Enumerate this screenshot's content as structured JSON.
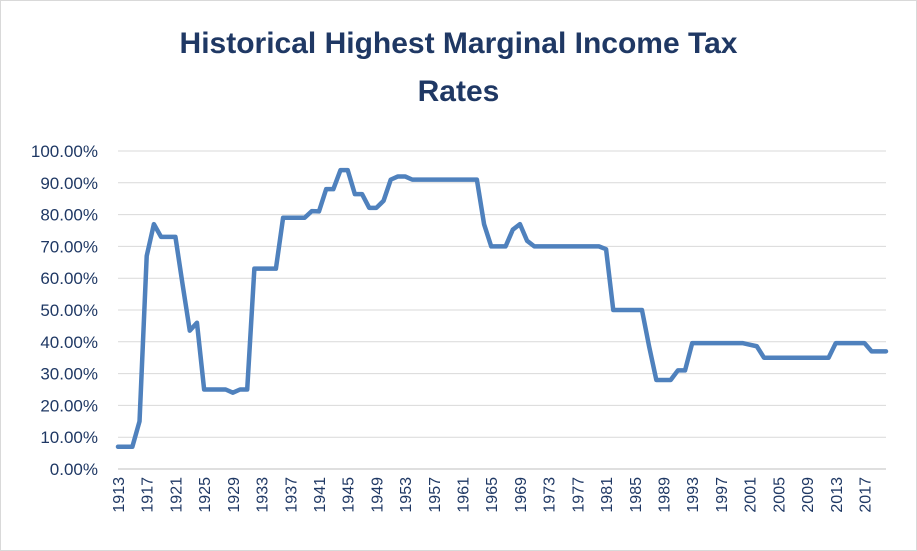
{
  "chart_data": {
    "type": "line",
    "title_lines": [
      "Historical Highest Marginal Income Tax",
      "Rates"
    ],
    "xlabel": "",
    "ylabel": "",
    "ylim": [
      0,
      100
    ],
    "yticks": [
      "0.00%",
      "10.00%",
      "20.00%",
      "30.00%",
      "40.00%",
      "50.00%",
      "60.00%",
      "70.00%",
      "80.00%",
      "90.00%",
      "100.00%"
    ],
    "xticks": [
      "1913",
      "1917",
      "1921",
      "1925",
      "1929",
      "1933",
      "1937",
      "1941",
      "1945",
      "1949",
      "1953",
      "1957",
      "1961",
      "1965",
      "1969",
      "1973",
      "1977",
      "1981",
      "1985",
      "1989",
      "1993",
      "1997",
      "2001",
      "2005",
      "2009",
      "2013",
      "2017"
    ],
    "grid": true,
    "legend": "none",
    "line_color": "#4f81bd",
    "series": [
      {
        "x": [
          1913,
          1914,
          1915,
          1916,
          1917,
          1918,
          1919,
          1920,
          1921,
          1922,
          1923,
          1924,
          1925,
          1926,
          1927,
          1928,
          1929,
          1930,
          1931,
          1932,
          1933,
          1934,
          1935,
          1936,
          1937,
          1938,
          1939,
          1940,
          1941,
          1942,
          1943,
          1944,
          1945,
          1946,
          1947,
          1948,
          1949,
          1950,
          1951,
          1952,
          1953,
          1954,
          1955,
          1956,
          1957,
          1958,
          1959,
          1960,
          1961,
          1962,
          1963,
          1964,
          1965,
          1966,
          1967,
          1968,
          1969,
          1970,
          1971,
          1972,
          1973,
          1974,
          1975,
          1976,
          1977,
          1978,
          1979,
          1980,
          1981,
          1982,
          1983,
          1984,
          1985,
          1986,
          1987,
          1988,
          1989,
          1990,
          1991,
          1992,
          1993,
          1994,
          1995,
          1996,
          1997,
          1998,
          1999,
          2000,
          2001,
          2002,
          2003,
          2004,
          2005,
          2006,
          2007,
          2008,
          2009,
          2010,
          2011,
          2012,
          2013,
          2014,
          2015,
          2016,
          2017,
          2018,
          2019,
          2020
        ],
        "values": [
          7,
          7,
          7,
          15,
          67,
          77,
          73,
          73,
          73,
          58,
          43.5,
          46,
          25,
          25,
          25,
          25,
          24,
          25,
          25,
          63,
          63,
          63,
          63,
          79,
          79,
          79,
          79,
          81.1,
          81,
          88,
          88,
          94,
          94,
          86.45,
          86.45,
          82.13,
          82.13,
          84.36,
          91,
          92,
          92,
          91,
          91,
          91,
          91,
          91,
          91,
          91,
          91,
          91,
          91,
          77,
          70,
          70,
          70,
          75.25,
          77,
          71.75,
          70,
          70,
          70,
          70,
          70,
          70,
          70,
          70,
          70,
          70,
          69.13,
          50,
          50,
          50,
          50,
          50,
          38.5,
          28,
          28,
          28,
          31,
          31,
          39.6,
          39.6,
          39.6,
          39.6,
          39.6,
          39.6,
          39.6,
          39.6,
          39.1,
          38.6,
          35,
          35,
          35,
          35,
          35,
          35,
          35,
          35,
          35,
          35,
          39.6,
          39.6,
          39.6,
          39.6,
          39.6,
          37,
          37,
          37
        ]
      }
    ]
  }
}
